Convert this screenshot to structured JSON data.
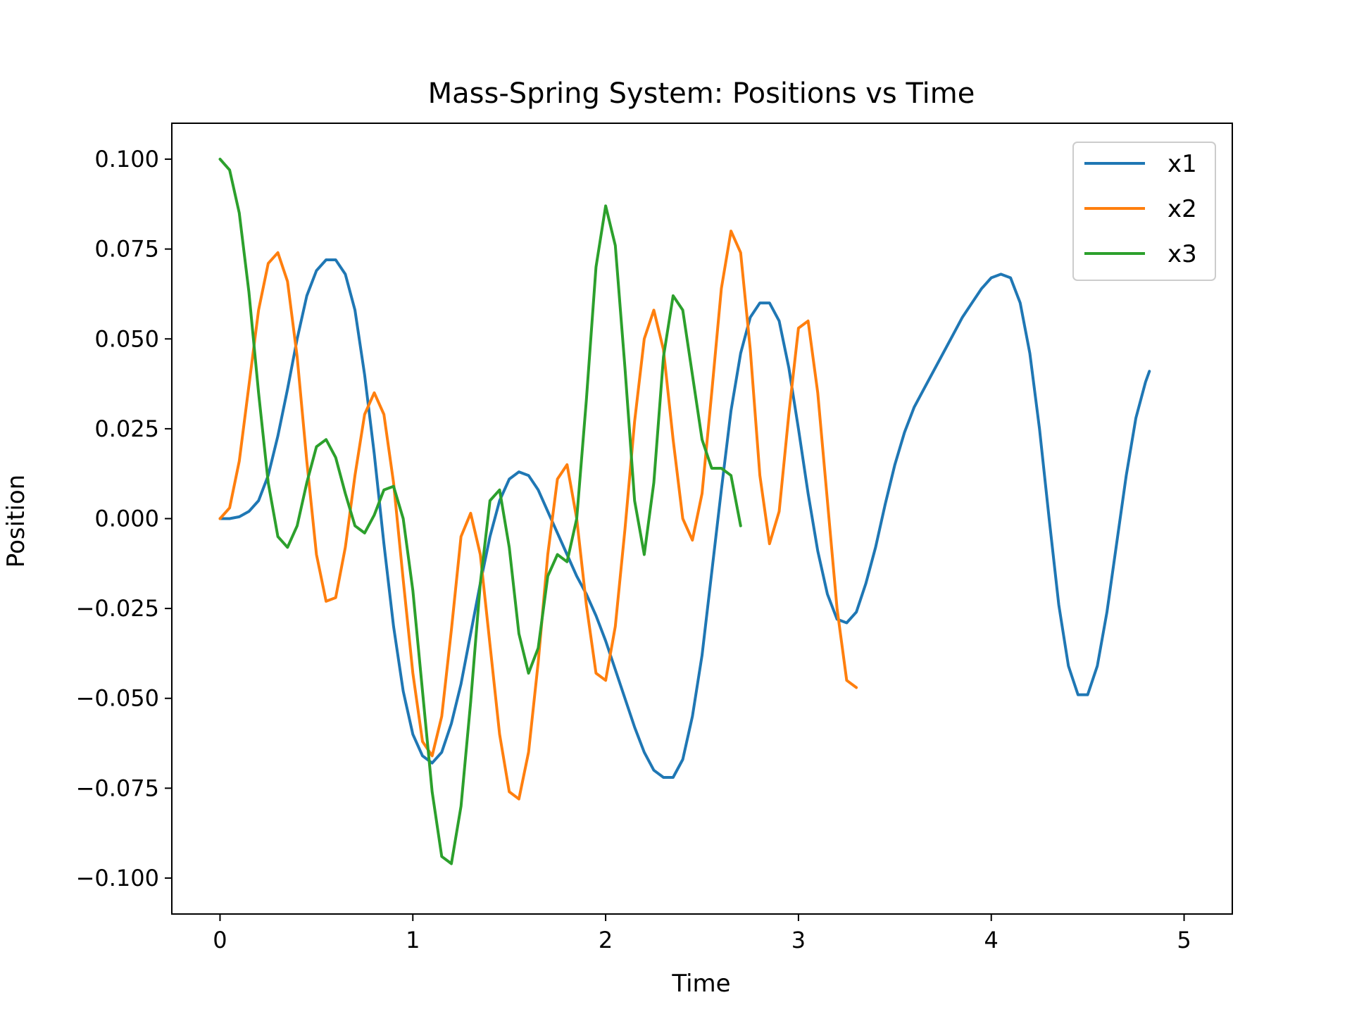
{
  "chart_data": {
    "type": "line",
    "title": "Mass-Spring System: Positions vs Time",
    "xlabel": "Time",
    "ylabel": "Position",
    "xlim": [
      -0.25,
      5.25
    ],
    "ylim": [
      -0.11,
      0.11
    ],
    "x_ticks": [
      0,
      1,
      2,
      3,
      4,
      5
    ],
    "x_tick_labels": [
      "0",
      "1",
      "2",
      "3",
      "4",
      "5"
    ],
    "y_ticks": [
      0.1,
      0.075,
      0.05,
      0.025,
      0.0,
      -0.025,
      -0.05,
      -0.075,
      -0.1
    ],
    "y_tick_labels": [
      "0.100",
      "0.075",
      "0.050",
      "0.025",
      "0.000",
      "−0.025",
      "−0.050",
      "−0.075",
      "−0.100"
    ],
    "grid": false,
    "legend_position": "top-right",
    "series": [
      {
        "name": "x1",
        "color": "#1f77b4",
        "points": [
          [
            0,
            0
          ],
          [
            0.05,
            0
          ],
          [
            0.1,
            0.0005
          ],
          [
            0.15,
            0.002
          ],
          [
            0.2,
            0.005
          ],
          [
            0.25,
            0.012
          ],
          [
            0.3,
            0.023
          ],
          [
            0.35,
            0.036
          ],
          [
            0.4,
            0.05
          ],
          [
            0.45,
            0.062
          ],
          [
            0.5,
            0.069
          ],
          [
            0.55,
            0.072
          ],
          [
            0.6,
            0.072
          ],
          [
            0.65,
            0.068
          ],
          [
            0.7,
            0.058
          ],
          [
            0.75,
            0.04
          ],
          [
            0.8,
            0.018
          ],
          [
            0.85,
            -0.007
          ],
          [
            0.9,
            -0.03
          ],
          [
            0.95,
            -0.048
          ],
          [
            1.0,
            -0.06
          ],
          [
            1.05,
            -0.066
          ],
          [
            1.1,
            -0.068
          ],
          [
            1.15,
            -0.065
          ],
          [
            1.2,
            -0.057
          ],
          [
            1.25,
            -0.046
          ],
          [
            1.3,
            -0.032
          ],
          [
            1.35,
            -0.018
          ],
          [
            1.4,
            -0.005
          ],
          [
            1.45,
            0.005
          ],
          [
            1.5,
            0.011
          ],
          [
            1.55,
            0.013
          ],
          [
            1.6,
            0.012
          ],
          [
            1.65,
            0.008
          ],
          [
            1.7,
            0.002
          ],
          [
            1.75,
            -0.004
          ],
          [
            1.8,
            -0.01
          ],
          [
            1.85,
            -0.016
          ],
          [
            1.9,
            -0.021
          ],
          [
            1.95,
            -0.027
          ],
          [
            2.0,
            -0.034
          ],
          [
            2.05,
            -0.042
          ],
          [
            2.1,
            -0.05
          ],
          [
            2.15,
            -0.058
          ],
          [
            2.2,
            -0.065
          ],
          [
            2.25,
            -0.07
          ],
          [
            2.3,
            -0.072
          ],
          [
            2.35,
            -0.072
          ],
          [
            2.4,
            -0.067
          ],
          [
            2.45,
            -0.055
          ],
          [
            2.5,
            -0.038
          ],
          [
            2.55,
            -0.015
          ],
          [
            2.6,
            0.008
          ],
          [
            2.65,
            0.03
          ],
          [
            2.7,
            0.046
          ],
          [
            2.75,
            0.056
          ],
          [
            2.8,
            0.06
          ],
          [
            2.85,
            0.06
          ],
          [
            2.9,
            0.055
          ],
          [
            2.95,
            0.042
          ],
          [
            3.0,
            0.025
          ],
          [
            3.05,
            0.007
          ],
          [
            3.1,
            -0.009
          ],
          [
            3.15,
            -0.021
          ],
          [
            3.2,
            -0.028
          ],
          [
            3.25,
            -0.029
          ],
          [
            3.3,
            -0.026
          ],
          [
            3.35,
            -0.018
          ],
          [
            3.4,
            -0.008
          ],
          [
            3.45,
            0.004
          ],
          [
            3.5,
            0.015
          ],
          [
            3.55,
            0.024
          ],
          [
            3.6,
            0.031
          ],
          [
            3.65,
            0.036
          ],
          [
            3.7,
            0.041
          ],
          [
            3.75,
            0.046
          ],
          [
            3.8,
            0.051
          ],
          [
            3.85,
            0.056
          ],
          [
            3.9,
            0.06
          ],
          [
            3.95,
            0.064
          ],
          [
            4.0,
            0.067
          ],
          [
            4.05,
            0.068
          ],
          [
            4.1,
            0.067
          ],
          [
            4.15,
            0.06
          ],
          [
            4.2,
            0.046
          ],
          [
            4.25,
            0.025
          ],
          [
            4.3,
            0.0
          ],
          [
            4.35,
            -0.024
          ],
          [
            4.4,
            -0.041
          ],
          [
            4.45,
            -0.049
          ],
          [
            4.5,
            -0.049
          ],
          [
            4.55,
            -0.041
          ],
          [
            4.6,
            -0.026
          ],
          [
            4.65,
            -0.007
          ],
          [
            4.7,
            0.012
          ],
          [
            4.75,
            0.028
          ],
          [
            4.8,
            0.038
          ],
          [
            4.82,
            0.041
          ]
        ]
      },
      {
        "name": "x2",
        "color": "#ff7f0e",
        "points": [
          [
            0,
            0
          ],
          [
            0.05,
            0.003
          ],
          [
            0.1,
            0.016
          ],
          [
            0.15,
            0.037
          ],
          [
            0.2,
            0.058
          ],
          [
            0.25,
            0.071
          ],
          [
            0.3,
            0.074
          ],
          [
            0.35,
            0.066
          ],
          [
            0.4,
            0.045
          ],
          [
            0.45,
            0.016
          ],
          [
            0.5,
            -0.01
          ],
          [
            0.55,
            -0.023
          ],
          [
            0.6,
            -0.022
          ],
          [
            0.65,
            -0.008
          ],
          [
            0.7,
            0.012
          ],
          [
            0.75,
            0.029
          ],
          [
            0.8,
            0.035
          ],
          [
            0.85,
            0.029
          ],
          [
            0.9,
            0.01
          ],
          [
            0.95,
            -0.017
          ],
          [
            1.0,
            -0.043
          ],
          [
            1.05,
            -0.062
          ],
          [
            1.1,
            -0.066
          ],
          [
            1.15,
            -0.055
          ],
          [
            1.2,
            -0.031
          ],
          [
            1.25,
            -0.005
          ],
          [
            1.3,
            0.0015
          ],
          [
            1.35,
            -0.01
          ],
          [
            1.4,
            -0.035
          ],
          [
            1.45,
            -0.06
          ],
          [
            1.5,
            -0.076
          ],
          [
            1.55,
            -0.078
          ],
          [
            1.6,
            -0.065
          ],
          [
            1.65,
            -0.04
          ],
          [
            1.7,
            -0.01
          ],
          [
            1.75,
            0.011
          ],
          [
            1.8,
            0.015
          ],
          [
            1.85,
            0.0
          ],
          [
            1.9,
            -0.024
          ],
          [
            1.95,
            -0.043
          ],
          [
            2.0,
            -0.045
          ],
          [
            2.05,
            -0.03
          ],
          [
            2.1,
            -0.003
          ],
          [
            2.15,
            0.027
          ],
          [
            2.2,
            0.05
          ],
          [
            2.25,
            0.058
          ],
          [
            2.3,
            0.047
          ],
          [
            2.35,
            0.022
          ],
          [
            2.4,
            0.0
          ],
          [
            2.45,
            -0.006
          ],
          [
            2.5,
            0.007
          ],
          [
            2.55,
            0.035
          ],
          [
            2.6,
            0.064
          ],
          [
            2.65,
            0.08
          ],
          [
            2.7,
            0.074
          ],
          [
            2.75,
            0.047
          ],
          [
            2.8,
            0.012
          ],
          [
            2.85,
            -0.007
          ],
          [
            2.9,
            0.002
          ],
          [
            2.95,
            0.029
          ],
          [
            3.0,
            0.053
          ],
          [
            3.05,
            0.055
          ],
          [
            3.1,
            0.035
          ],
          [
            3.15,
            0.005
          ],
          [
            3.2,
            -0.025
          ],
          [
            3.25,
            -0.045
          ],
          [
            3.3,
            -0.047
          ]
        ]
      },
      {
        "name": "x3",
        "color": "#2ca02c",
        "points": [
          [
            0,
            0.1
          ],
          [
            0.05,
            0.097
          ],
          [
            0.1,
            0.085
          ],
          [
            0.15,
            0.063
          ],
          [
            0.2,
            0.035
          ],
          [
            0.25,
            0.01
          ],
          [
            0.3,
            -0.005
          ],
          [
            0.35,
            -0.008
          ],
          [
            0.4,
            -0.002
          ],
          [
            0.45,
            0.01
          ],
          [
            0.5,
            0.02
          ],
          [
            0.55,
            0.022
          ],
          [
            0.6,
            0.017
          ],
          [
            0.65,
            0.007
          ],
          [
            0.7,
            -0.002
          ],
          [
            0.75,
            -0.004
          ],
          [
            0.8,
            0.001
          ],
          [
            0.85,
            0.008
          ],
          [
            0.9,
            0.009
          ],
          [
            0.95,
            0.0
          ],
          [
            1.0,
            -0.02
          ],
          [
            1.05,
            -0.048
          ],
          [
            1.1,
            -0.076
          ],
          [
            1.15,
            -0.094
          ],
          [
            1.2,
            -0.096
          ],
          [
            1.25,
            -0.08
          ],
          [
            1.3,
            -0.051
          ],
          [
            1.35,
            -0.018
          ],
          [
            1.4,
            0.005
          ],
          [
            1.45,
            0.008
          ],
          [
            1.5,
            -0.008
          ],
          [
            1.55,
            -0.032
          ],
          [
            1.6,
            -0.043
          ],
          [
            1.65,
            -0.036
          ],
          [
            1.7,
            -0.016
          ],
          [
            1.75,
            -0.01
          ],
          [
            1.8,
            -0.012
          ],
          [
            1.85,
            0.0
          ],
          [
            1.9,
            0.033
          ],
          [
            1.95,
            0.07
          ],
          [
            2.0,
            0.087
          ],
          [
            2.05,
            0.076
          ],
          [
            2.1,
            0.042
          ],
          [
            2.15,
            0.005
          ],
          [
            2.2,
            -0.01
          ],
          [
            2.25,
            0.01
          ],
          [
            2.3,
            0.045
          ],
          [
            2.35,
            0.062
          ],
          [
            2.4,
            0.058
          ],
          [
            2.45,
            0.04
          ],
          [
            2.5,
            0.022
          ],
          [
            2.55,
            0.014
          ],
          [
            2.6,
            0.014
          ],
          [
            2.65,
            0.012
          ],
          [
            2.7,
            -0.002
          ]
        ]
      }
    ]
  }
}
